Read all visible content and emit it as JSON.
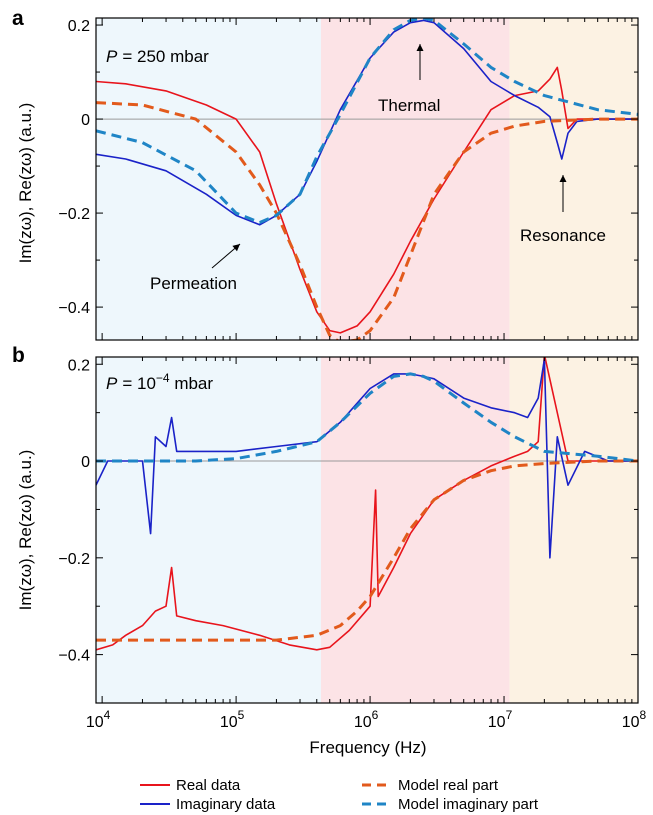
{
  "chart_data": [
    {
      "panel": "a",
      "type": "line",
      "pressure_label": "P = 250 mbar",
      "pressure_prefix": "P",
      "pressure_value": "= 250 mbar",
      "xlabel": "",
      "ylabel": "Im(zω), Re(zω) (a.u.)",
      "x_scale": "log",
      "xlim": [
        9000,
        100000000
      ],
      "ylim": [
        -0.47,
        0.215
      ],
      "yticks": [
        0.2,
        0,
        -0.2,
        -0.4
      ],
      "ytick_labels": [
        "0.2",
        "0",
        "−0.2",
        "−0.4"
      ],
      "zero_line": true,
      "regions": [
        {
          "x": [
            9000,
            430000
          ],
          "color": "#eef7fc"
        },
        {
          "x": [
            430000,
            11000000
          ],
          "color": "#fce3e6"
        },
        {
          "x": [
            11000000,
            100000000
          ],
          "color": "#fcf2e3"
        }
      ],
      "annotations": [
        {
          "text": "Thermal",
          "x": 2500000,
          "y": 0.08
        },
        {
          "text": "Resonance",
          "x": 28000000,
          "y": -0.245
        },
        {
          "text": "Permeation",
          "x": 100000,
          "y": -0.31
        }
      ],
      "series": [
        {
          "role": "real_data",
          "color": "#e8141c",
          "x": [
            9000,
            15000,
            30000,
            60000,
            100000,
            150000,
            200000,
            300000,
            400000,
            500000,
            600000,
            800000,
            1000000,
            1500000,
            2000000,
            3000000,
            5000000,
            8000000,
            12000000,
            18000000,
            22000000,
            25000000,
            27000000,
            30000000,
            35000000,
            50000000,
            100000000
          ],
          "y": [
            0.08,
            0.075,
            0.06,
            0.03,
            0.0,
            -0.07,
            -0.18,
            -0.32,
            -0.41,
            -0.45,
            -0.455,
            -0.44,
            -0.41,
            -0.33,
            -0.26,
            -0.17,
            -0.07,
            0.02,
            0.05,
            0.06,
            0.085,
            0.11,
            0.06,
            -0.02,
            0.0,
            0.0,
            0.0
          ]
        },
        {
          "role": "imag_data",
          "color": "#1a22c8",
          "x": [
            9000,
            15000,
            30000,
            60000,
            100000,
            150000,
            200000,
            300000,
            400000,
            600000,
            1000000,
            1500000,
            2000000,
            2500000,
            3000000,
            5000000,
            8000000,
            12000000,
            18000000,
            22000000,
            25000000,
            27000000,
            30000000,
            35000000,
            50000000,
            100000000
          ],
          "y": [
            -0.075,
            -0.085,
            -0.11,
            -0.16,
            -0.205,
            -0.225,
            -0.205,
            -0.16,
            -0.09,
            0.02,
            0.13,
            0.185,
            0.205,
            0.21,
            0.205,
            0.15,
            0.08,
            0.05,
            0.025,
            0.005,
            -0.05,
            -0.085,
            -0.03,
            -0.005,
            0.0,
            0.0
          ]
        },
        {
          "role": "model_real",
          "color": "#e25a1c",
          "x": [
            9000,
            20000,
            50000,
            100000,
            150000,
            200000,
            300000,
            400000,
            500000,
            600000,
            800000,
            1000000,
            1500000,
            2000000,
            3000000,
            5000000,
            8000000,
            12000000,
            20000000,
            50000000,
            100000000
          ],
          "y": [
            0.035,
            0.03,
            0.0,
            -0.07,
            -0.14,
            -0.2,
            -0.31,
            -0.4,
            -0.46,
            -0.475,
            -0.47,
            -0.45,
            -0.38,
            -0.29,
            -0.16,
            -0.07,
            -0.03,
            -0.015,
            -0.005,
            0.0,
            0.0
          ]
        },
        {
          "role": "model_imag",
          "color": "#1f85c6",
          "x": [
            9000,
            20000,
            50000,
            100000,
            150000,
            200000,
            300000,
            400000,
            600000,
            1000000,
            1500000,
            2000000,
            2500000,
            3000000,
            5000000,
            8000000,
            12000000,
            20000000,
            50000000,
            100000000
          ],
          "y": [
            -0.025,
            -0.05,
            -0.11,
            -0.2,
            -0.22,
            -0.205,
            -0.16,
            -0.08,
            0.01,
            0.13,
            0.19,
            0.21,
            0.215,
            0.21,
            0.16,
            0.11,
            0.08,
            0.05,
            0.02,
            0.01
          ]
        }
      ]
    },
    {
      "panel": "b",
      "type": "line",
      "pressure_label": "P = 10−4 mbar",
      "pressure_prefix": "P",
      "pressure_eq": "= 10",
      "pressure_exp": "−4",
      "pressure_unit": " mbar",
      "xlabel": "Frequency (Hz)",
      "ylabel": "Im(zω), Re(zω) (a.u.)",
      "x_scale": "log",
      "xlim": [
        9000,
        100000000
      ],
      "ylim": [
        -0.5,
        0.215
      ],
      "yticks": [
        0.2,
        0,
        -0.2,
        -0.4
      ],
      "ytick_labels": [
        "0.2",
        "0",
        "−0.2",
        "−0.4"
      ],
      "xtick_values": [
        10000,
        100000,
        1000000,
        10000000,
        100000000
      ],
      "xtick_labels": [
        {
          "base": "10",
          "exp": "4"
        },
        {
          "base": "10",
          "exp": "5"
        },
        {
          "base": "10",
          "exp": "6"
        },
        {
          "base": "10",
          "exp": "7"
        },
        {
          "base": "10",
          "exp": "8"
        }
      ],
      "zero_line": true,
      "regions": [
        {
          "x": [
            9000,
            430000
          ],
          "color": "#eef7fc"
        },
        {
          "x": [
            430000,
            11000000
          ],
          "color": "#fce3e6"
        },
        {
          "x": [
            11000000,
            100000000
          ],
          "color": "#fcf2e3"
        }
      ],
      "series": [
        {
          "role": "real_data",
          "color": "#e8141c",
          "x": [
            9000,
            12000,
            15000,
            20000,
            25000,
            30000,
            33000,
            36000,
            50000,
            80000,
            150000,
            250000,
            400000,
            500000,
            700000,
            1000000,
            1100000,
            1150000,
            1500000,
            2000000,
            3000000,
            5000000,
            8000000,
            12000000,
            15000000,
            18000000,
            20000000,
            30000000,
            50000000,
            100000000
          ],
          "y": [
            -0.39,
            -0.38,
            -0.36,
            -0.34,
            -0.31,
            -0.3,
            -0.22,
            -0.32,
            -0.33,
            -0.34,
            -0.36,
            -0.38,
            -0.39,
            -0.385,
            -0.35,
            -0.3,
            -0.06,
            -0.28,
            -0.22,
            -0.15,
            -0.08,
            -0.04,
            -0.01,
            0.01,
            0.02,
            0.04,
            0.22,
            0.0,
            0.0,
            0.0
          ]
        },
        {
          "role": "imag_data",
          "color": "#1a22c8",
          "x": [
            9000,
            11000,
            15000,
            20000,
            23000,
            25000,
            30000,
            33000,
            36000,
            50000,
            100000,
            200000,
            400000,
            600000,
            1000000,
            1500000,
            2000000,
            2500000,
            3000000,
            5000000,
            8000000,
            12000000,
            15000000,
            18000000,
            20000000,
            22000000,
            25000000,
            30000000,
            40000000,
            60000000,
            100000000
          ],
          "y": [
            -0.05,
            0.0,
            0.0,
            0.0,
            -0.15,
            0.05,
            0.03,
            0.09,
            0.02,
            0.02,
            0.02,
            0.03,
            0.04,
            0.08,
            0.15,
            0.18,
            0.18,
            0.175,
            0.17,
            0.13,
            0.11,
            0.1,
            0.09,
            0.13,
            0.21,
            -0.2,
            0.05,
            -0.05,
            0.02,
            0.0,
            0.0
          ]
        },
        {
          "role": "model_real",
          "color": "#e25a1c",
          "x": [
            9000,
            50000,
            200000,
            400000,
            600000,
            800000,
            1000000,
            1500000,
            2000000,
            3000000,
            5000000,
            8000000,
            12000000,
            20000000,
            50000000,
            100000000
          ],
          "y": [
            -0.37,
            -0.37,
            -0.37,
            -0.36,
            -0.34,
            -0.31,
            -0.28,
            -0.2,
            -0.14,
            -0.08,
            -0.04,
            -0.02,
            -0.01,
            -0.005,
            0.0,
            0.0
          ]
        },
        {
          "role": "model_imag",
          "color": "#1f85c6",
          "x": [
            9000,
            50000,
            100000,
            200000,
            400000,
            600000,
            1000000,
            1500000,
            2000000,
            2500000,
            3000000,
            5000000,
            8000000,
            12000000,
            20000000,
            50000000,
            100000000
          ],
          "y": [
            0.0,
            0.0,
            0.005,
            0.02,
            0.04,
            0.08,
            0.14,
            0.175,
            0.18,
            0.175,
            0.165,
            0.12,
            0.08,
            0.05,
            0.02,
            0.01,
            0.0
          ]
        }
      ]
    }
  ],
  "legend": {
    "placement": "bottom",
    "items": [
      {
        "label": "Real data",
        "color": "#e8141c",
        "dash": false
      },
      {
        "label": "Model real part",
        "color": "#e25a1c",
        "dash": true
      },
      {
        "label": "Imaginary data",
        "color": "#1a22c8",
        "dash": false
      },
      {
        "label": "Model imaginary part",
        "color": "#1f85c6",
        "dash": true
      }
    ]
  }
}
